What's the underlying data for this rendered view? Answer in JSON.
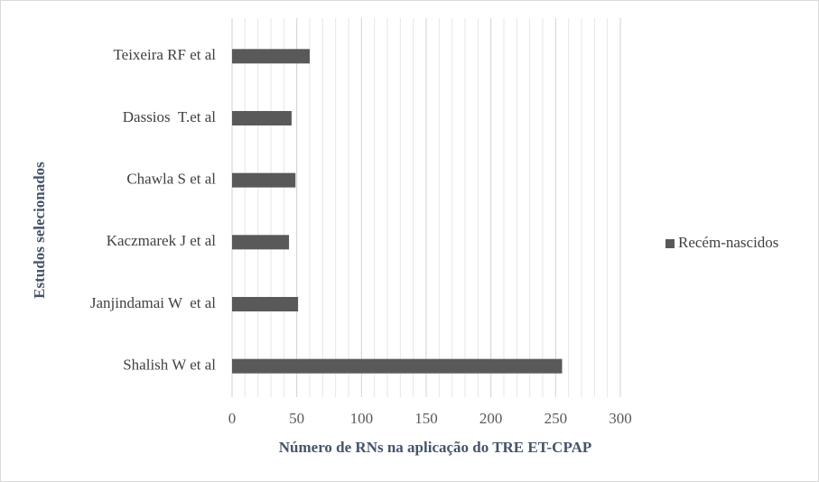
{
  "chart_data": {
    "type": "bar",
    "orientation": "horizontal",
    "categories": [
      "Shalish W et al",
      "Janjindamai W  et al",
      "Kaczmarek J et al",
      "Chawla S et al",
      "Dassios  T.et al",
      "Teixeira RF et al"
    ],
    "series": [
      {
        "name": "Recém-nascidos",
        "color": "#595959",
        "values": [
          255,
          51,
          44,
          49,
          46,
          60
        ]
      }
    ],
    "x_label": "Número de RNs na aplicação do TRE ET-CPAP",
    "y_label": "Estudos selecionados",
    "xlim": [
      0,
      300
    ],
    "xticks": [
      0,
      50,
      100,
      150,
      200,
      250,
      300
    ],
    "grid": true,
    "minor_grid": true,
    "legend": "right"
  }
}
